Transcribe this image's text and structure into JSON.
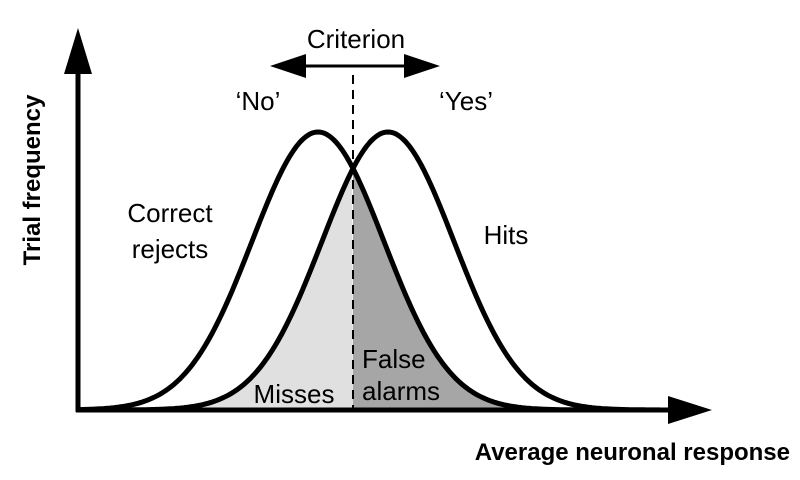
{
  "axes": {
    "y_label": "Trial frequency",
    "x_label": "Average neuronal response"
  },
  "criterion": {
    "label": "Criterion",
    "left": "‘No’",
    "right": "‘Yes’"
  },
  "regions": {
    "correct_rejects": [
      "Correct",
      "rejects"
    ],
    "hits": "Hits",
    "misses": "Misses",
    "false_alarms": [
      "False",
      "alarms"
    ]
  }
}
